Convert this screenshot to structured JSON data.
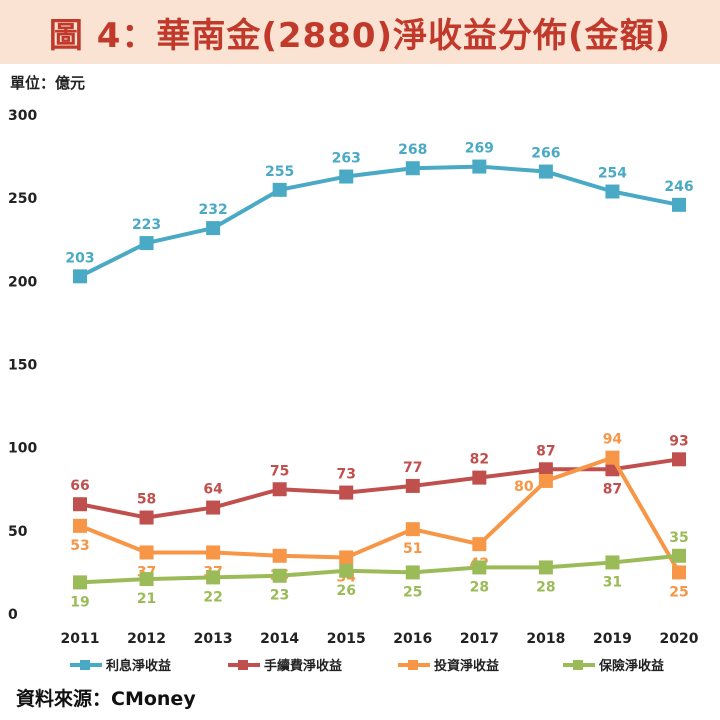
{
  "page": {
    "title": "圖 4：華南金(2880)淨收益分佈(金額)",
    "unit": "單位：億元",
    "source": "資料來源：CMoney"
  },
  "chart_data": {
    "type": "line",
    "title": "圖 4：華南金(2880)淨收益分佈(金額)",
    "xlabel": "",
    "ylabel": "單位：億元",
    "ylim": [
      0,
      300
    ],
    "yticks": [
      0,
      50,
      100,
      150,
      200,
      250,
      300
    ],
    "x": [
      "2011",
      "2012",
      "2013",
      "2014",
      "2015",
      "2016",
      "2017",
      "2018",
      "2019",
      "2020"
    ],
    "legend_position": "bottom",
    "series": [
      {
        "name": "利息淨收益",
        "color": "#4aaac5",
        "label_pos": "above",
        "values": [
          203,
          223,
          232,
          255,
          263,
          268,
          269,
          266,
          254,
          246
        ]
      },
      {
        "name": "手續費淨收益",
        "color": "#c0504d",
        "label_pos": "above",
        "values": [
          66,
          58,
          64,
          75,
          73,
          77,
          82,
          87,
          87,
          93
        ]
      },
      {
        "name": "投資淨收益",
        "color": "#f79646",
        "label_pos": "below",
        "values": [
          53,
          37,
          37,
          35,
          34,
          51,
          42,
          80,
          94,
          25
        ]
      },
      {
        "name": "保險淨收益",
        "color": "#9bbb59",
        "label_pos": "below",
        "values": [
          19,
          21,
          22,
          23,
          26,
          25,
          28,
          28,
          31,
          35
        ]
      }
    ]
  }
}
